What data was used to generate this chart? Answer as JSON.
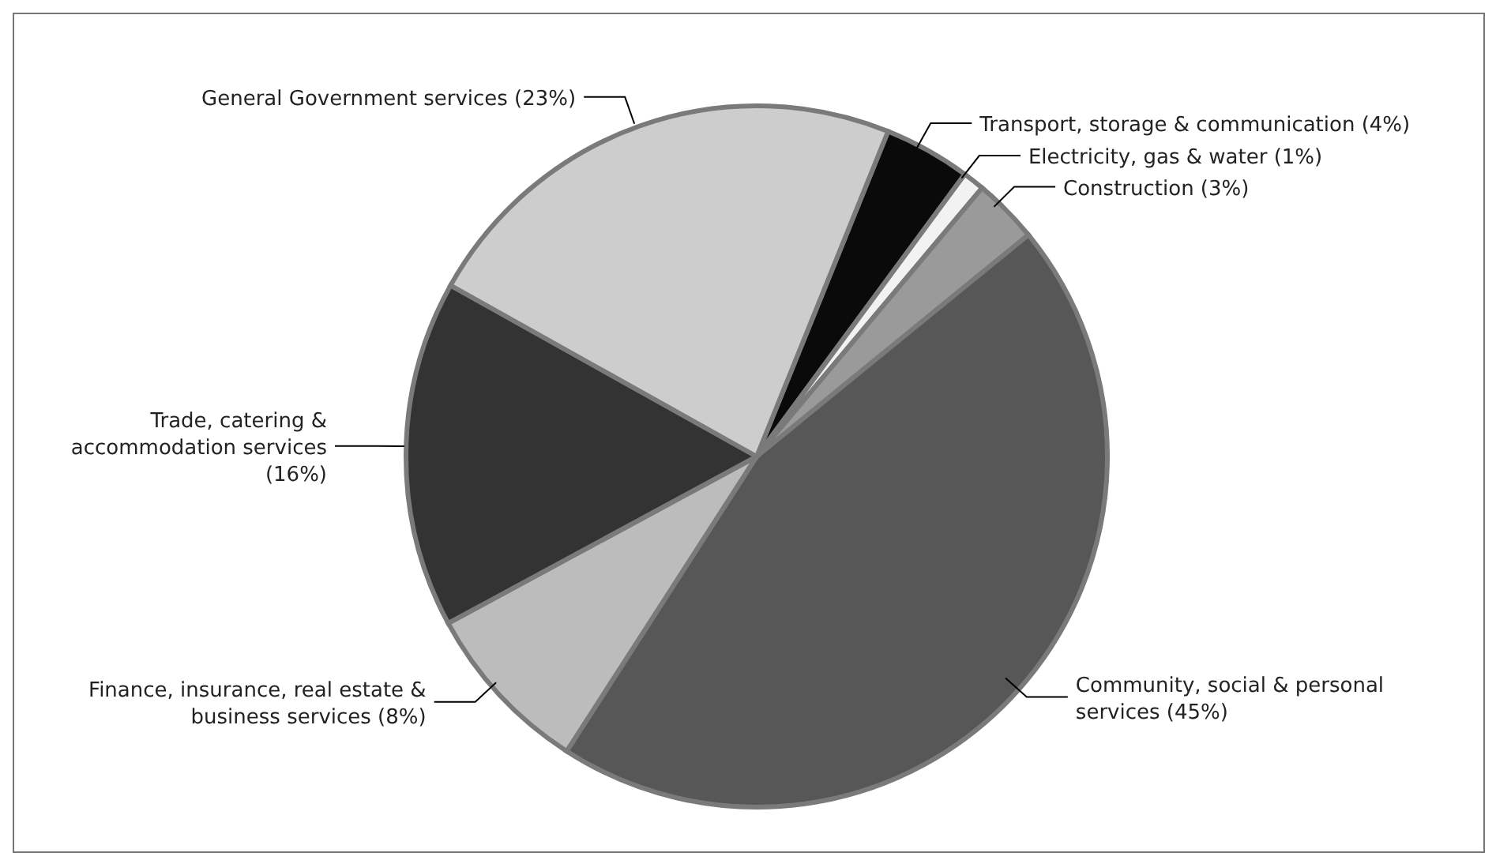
{
  "chart_data": {
    "type": "pie",
    "categories": [
      "Transport, storage & communication (4%)",
      "Electricity, gas & water (1%)",
      "Construction (3%)",
      "Community, social & personal services (45%)",
      "Finance, insurance, real estate & business services (8%)",
      "Trade, catering & accommodation services (16%)",
      "General Government services (23%)"
    ],
    "values": [
      4,
      1,
      3,
      45,
      8,
      16,
      23
    ],
    "colors": [
      "#0a0a0a",
      "#f2f2f2",
      "#9a9a9a",
      "#575757",
      "#bcbcbc",
      "#333333",
      "#cdcdcd"
    ]
  }
}
